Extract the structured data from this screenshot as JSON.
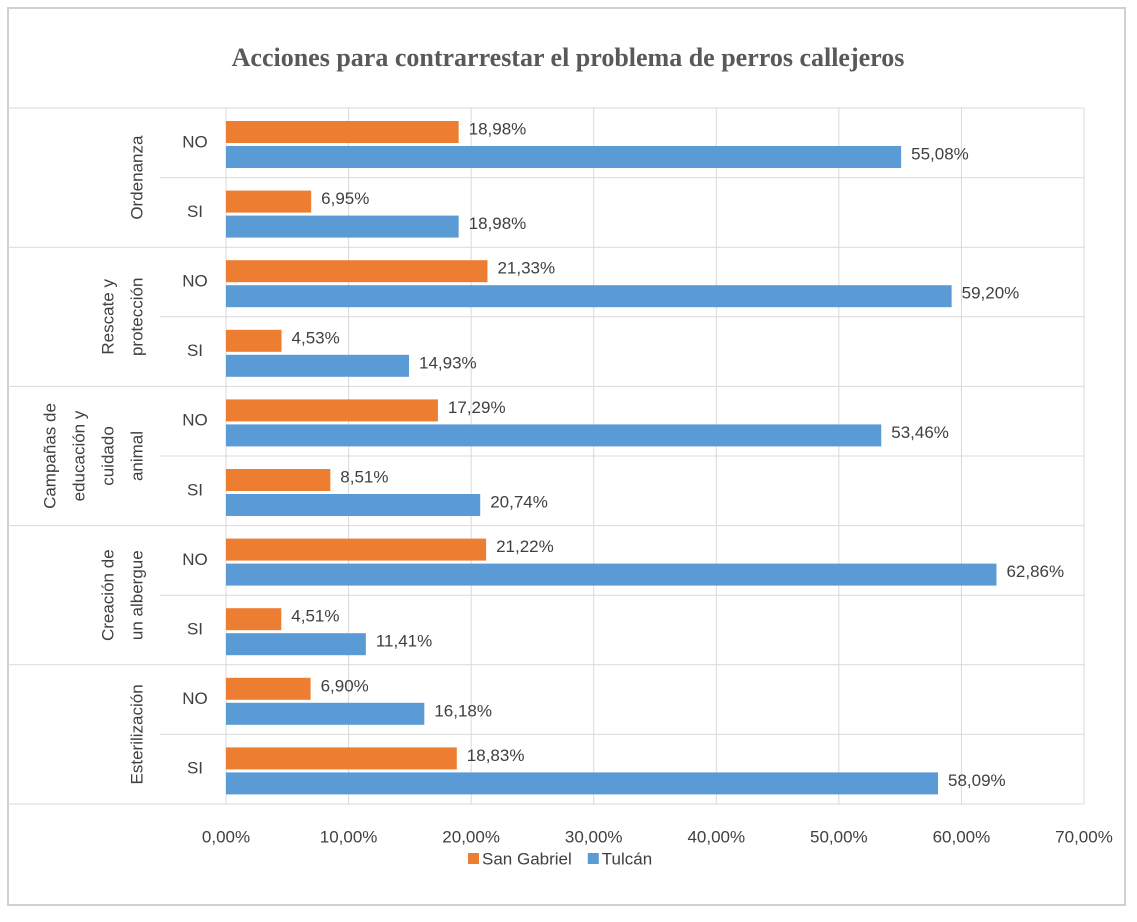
{
  "chart_data": {
    "type": "bar",
    "orientation": "horizontal",
    "title": "Acciones para contrarrestar el problema de perros callejeros",
    "groups": [
      {
        "label": [
          "Ordenanza"
        ],
        "categories": [
          "NO",
          "SI"
        ]
      },
      {
        "label": [
          "Rescate y",
          "protección"
        ],
        "categories": [
          "NO",
          "SI"
        ]
      },
      {
        "label": [
          "Campañas de",
          "educación y",
          "cuidado",
          "animal"
        ],
        "categories": [
          "NO",
          "SI"
        ]
      },
      {
        "label": [
          "Creación de",
          "un albergue"
        ],
        "categories": [
          "NO",
          "SI"
        ]
      },
      {
        "label": [
          "Esterilización"
        ],
        "categories": [
          "NO",
          "SI"
        ]
      }
    ],
    "series": [
      {
        "name": "San Gabriel",
        "color": "#ed7d31",
        "values": [
          18.98,
          6.95,
          21.33,
          4.53,
          17.29,
          8.51,
          21.22,
          4.51,
          6.9,
          18.83
        ],
        "value_labels": [
          "18,98%",
          "6,95%",
          "21,33%",
          "4,53%",
          "17,29%",
          "8,51%",
          "21,22%",
          "4,51%",
          "6,90%",
          "18,83%"
        ]
      },
      {
        "name": "Tulcán",
        "color": "#5b9bd5",
        "values": [
          55.08,
          18.98,
          59.2,
          14.93,
          53.46,
          20.74,
          62.86,
          11.41,
          16.18,
          58.09
        ],
        "value_labels": [
          "55,08%",
          "18,98%",
          "59,20%",
          "14,93%",
          "53,46%",
          "20,74%",
          "62,86%",
          "11,41%",
          "16,18%",
          "58,09%"
        ]
      }
    ],
    "xlim": [
      0,
      70
    ],
    "xticks": [
      {
        "value": 0,
        "label": "0,00%"
      },
      {
        "value": 10,
        "label": "10,00%"
      },
      {
        "value": 20,
        "label": "20,00%"
      },
      {
        "value": 30,
        "label": "30,00%"
      },
      {
        "value": 40,
        "label": "40,00%"
      },
      {
        "value": 50,
        "label": "50,00%"
      },
      {
        "value": 60,
        "label": "60,00%"
      },
      {
        "value": 70,
        "label": "70,00%"
      }
    ],
    "grid": true,
    "legend": "bottom"
  }
}
